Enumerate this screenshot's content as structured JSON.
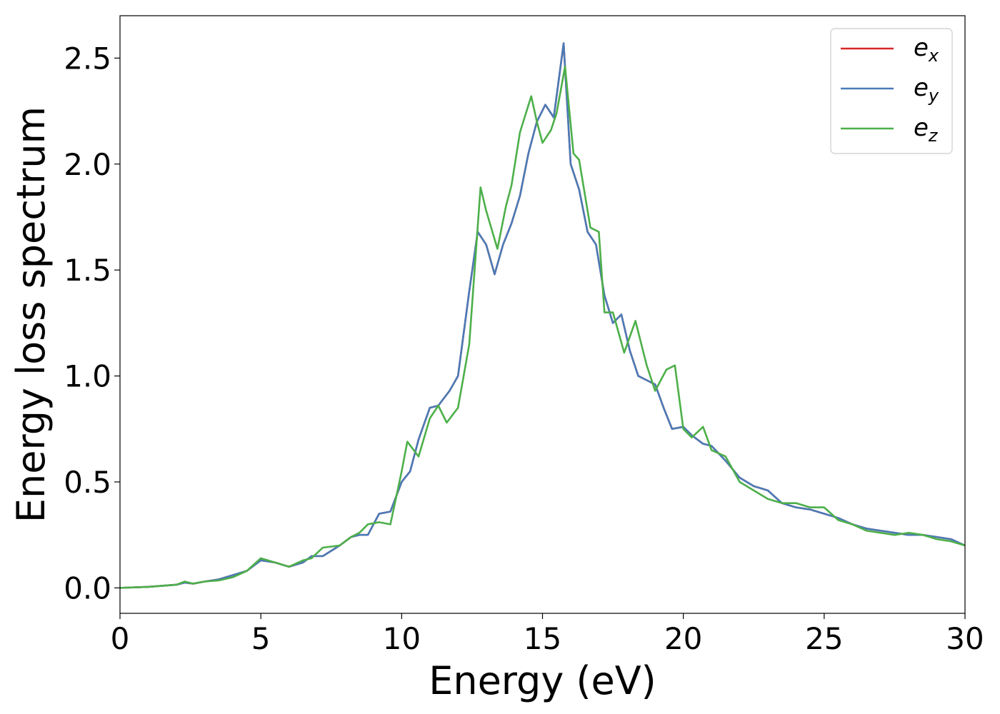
{
  "chart_data": {
    "type": "line",
    "title": "",
    "xlabel": "Energy (eV)",
    "ylabel": "Energy loss spectrum",
    "xlim": [
      0,
      30
    ],
    "ylim": [
      -0.12,
      2.7
    ],
    "xticks": [
      0,
      5,
      10,
      15,
      20,
      25,
      30
    ],
    "xtick_labels": [
      "0",
      "5",
      "10",
      "15",
      "20",
      "25",
      "30"
    ],
    "yticks": [
      0.0,
      0.5,
      1.0,
      1.5,
      2.0,
      2.5
    ],
    "ytick_labels": [
      "0.0",
      "0.5",
      "1.0",
      "1.5",
      "2.0",
      "2.5"
    ],
    "grid": false,
    "legend_position": "top-right",
    "series": [
      {
        "name": "e_x",
        "legend_base": "e",
        "legend_sub": "x",
        "color": "#d62728",
        "x": [
          0,
          1,
          1.5,
          2,
          2.3,
          2.6,
          3,
          3.5,
          4,
          4.5,
          5,
          5.5,
          6,
          6.5,
          6.8,
          7.2,
          7.8,
          8.2,
          8.5,
          8.8,
          9.2,
          9.6,
          10,
          10.3,
          10.6,
          11,
          11.3,
          11.7,
          12,
          12.4,
          12.7,
          13,
          13.3,
          13.6,
          13.9,
          14.2,
          14.5,
          14.8,
          15.1,
          15.4,
          15.75,
          16,
          16.3,
          16.6,
          16.9,
          17.2,
          17.5,
          17.8,
          18.1,
          18.4,
          18.7,
          19,
          19.3,
          19.6,
          20,
          20.3,
          20.7,
          21,
          21.5,
          22,
          22.5,
          23,
          23.5,
          24,
          24.5,
          25,
          25.5,
          26,
          26.5,
          27,
          27.5,
          28,
          28.5,
          29,
          29.5,
          30
        ],
        "y": [
          0,
          0.005,
          0.01,
          0.015,
          0.025,
          0.02,
          0.03,
          0.04,
          0.06,
          0.08,
          0.13,
          0.12,
          0.1,
          0.12,
          0.15,
          0.15,
          0.2,
          0.24,
          0.25,
          0.25,
          0.35,
          0.36,
          0.5,
          0.55,
          0.7,
          0.85,
          0.86,
          0.93,
          1.0,
          1.4,
          1.68,
          1.62,
          1.48,
          1.62,
          1.72,
          1.85,
          2.05,
          2.2,
          2.28,
          2.22,
          2.57,
          2.0,
          1.88,
          1.68,
          1.62,
          1.38,
          1.25,
          1.29,
          1.12,
          1.0,
          0.98,
          0.96,
          0.85,
          0.75,
          0.76,
          0.72,
          0.68,
          0.67,
          0.6,
          0.52,
          0.48,
          0.46,
          0.4,
          0.38,
          0.37,
          0.35,
          0.33,
          0.3,
          0.28,
          0.27,
          0.26,
          0.25,
          0.25,
          0.24,
          0.23,
          0.2
        ]
      },
      {
        "name": "e_y",
        "legend_base": "e",
        "legend_sub": "y",
        "color": "#4a7bb7",
        "x": [
          0,
          1,
          1.5,
          2,
          2.3,
          2.6,
          3,
          3.5,
          4,
          4.5,
          5,
          5.5,
          6,
          6.5,
          6.8,
          7.2,
          7.8,
          8.2,
          8.5,
          8.8,
          9.2,
          9.6,
          10,
          10.3,
          10.6,
          11,
          11.3,
          11.7,
          12,
          12.4,
          12.7,
          13,
          13.3,
          13.6,
          13.9,
          14.2,
          14.5,
          14.8,
          15.1,
          15.4,
          15.75,
          16,
          16.3,
          16.6,
          16.9,
          17.2,
          17.5,
          17.8,
          18.1,
          18.4,
          18.7,
          19,
          19.3,
          19.6,
          20,
          20.3,
          20.7,
          21,
          21.5,
          22,
          22.5,
          23,
          23.5,
          24,
          24.5,
          25,
          25.5,
          26,
          26.5,
          27,
          27.5,
          28,
          28.5,
          29,
          29.5,
          30
        ],
        "y": [
          0,
          0.005,
          0.01,
          0.015,
          0.025,
          0.02,
          0.03,
          0.04,
          0.06,
          0.08,
          0.13,
          0.12,
          0.1,
          0.12,
          0.15,
          0.15,
          0.2,
          0.24,
          0.25,
          0.25,
          0.35,
          0.36,
          0.5,
          0.55,
          0.7,
          0.85,
          0.86,
          0.93,
          1.0,
          1.4,
          1.68,
          1.62,
          1.48,
          1.62,
          1.72,
          1.85,
          2.05,
          2.2,
          2.28,
          2.22,
          2.57,
          2.0,
          1.88,
          1.68,
          1.62,
          1.38,
          1.25,
          1.29,
          1.12,
          1.0,
          0.98,
          0.96,
          0.85,
          0.75,
          0.76,
          0.72,
          0.68,
          0.67,
          0.6,
          0.52,
          0.48,
          0.46,
          0.4,
          0.38,
          0.37,
          0.35,
          0.33,
          0.3,
          0.28,
          0.27,
          0.26,
          0.25,
          0.25,
          0.24,
          0.23,
          0.2
        ]
      },
      {
        "name": "e_z",
        "legend_base": "e",
        "legend_sub": "z",
        "color": "#4daf4a",
        "x": [
          0,
          1,
          1.5,
          2,
          2.3,
          2.6,
          3,
          3.5,
          4,
          4.5,
          5,
          5.5,
          6,
          6.5,
          6.8,
          7.2,
          7.8,
          8.2,
          8.5,
          8.8,
          9.2,
          9.6,
          10,
          10.2,
          10.6,
          11,
          11.3,
          11.6,
          12,
          12.4,
          12.8,
          13,
          13.4,
          13.7,
          13.9,
          14.2,
          14.6,
          14.8,
          15,
          15.3,
          15.5,
          15.8,
          16.1,
          16.3,
          16.7,
          17,
          17.2,
          17.5,
          17.9,
          18.3,
          18.7,
          19,
          19.4,
          19.7,
          20,
          20.3,
          20.7,
          21,
          21.5,
          22,
          22.5,
          23,
          23.5,
          24,
          24.5,
          25,
          25.5,
          26,
          26.5,
          27,
          27.5,
          28,
          28.5,
          29,
          29.5,
          30
        ],
        "y": [
          0,
          0.005,
          0.01,
          0.015,
          0.03,
          0.02,
          0.03,
          0.035,
          0.05,
          0.08,
          0.14,
          0.12,
          0.1,
          0.13,
          0.14,
          0.19,
          0.2,
          0.24,
          0.26,
          0.3,
          0.31,
          0.3,
          0.55,
          0.69,
          0.62,
          0.8,
          0.86,
          0.78,
          0.85,
          1.15,
          1.89,
          1.78,
          1.6,
          1.8,
          1.9,
          2.15,
          2.32,
          2.2,
          2.1,
          2.16,
          2.24,
          2.46,
          2.05,
          2.02,
          1.7,
          1.68,
          1.3,
          1.3,
          1.11,
          1.26,
          1.05,
          0.93,
          1.03,
          1.05,
          0.75,
          0.71,
          0.76,
          0.65,
          0.62,
          0.5,
          0.46,
          0.42,
          0.4,
          0.4,
          0.38,
          0.38,
          0.32,
          0.3,
          0.27,
          0.26,
          0.25,
          0.26,
          0.25,
          0.23,
          0.22,
          0.2
        ]
      }
    ]
  }
}
